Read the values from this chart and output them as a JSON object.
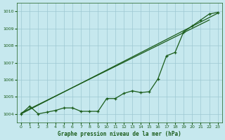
{
  "title": "Graphe pression niveau de la mer (hPa)",
  "bg_color": "#c6e8ee",
  "grid_color": "#9dc8d2",
  "line_color": "#1a5c1a",
  "xlim": [
    -0.5,
    23.5
  ],
  "ylim": [
    1003.5,
    1010.5
  ],
  "yticks": [
    1004,
    1005,
    1006,
    1007,
    1008,
    1009,
    1010
  ],
  "xticks": [
    0,
    1,
    2,
    3,
    4,
    5,
    6,
    7,
    8,
    9,
    10,
    11,
    12,
    13,
    14,
    15,
    16,
    17,
    18,
    19,
    20,
    21,
    22,
    23
  ],
  "line1_x": [
    0,
    23
  ],
  "line1_y": [
    1004.0,
    1009.9
  ],
  "line2_x": [
    0,
    22
  ],
  "line2_y": [
    1004.05,
    1009.5
  ],
  "markers_x": [
    0,
    1,
    2,
    3,
    4,
    5,
    6,
    7,
    8,
    9,
    10,
    11,
    12,
    13,
    14,
    15,
    16,
    17,
    18,
    19,
    20,
    21,
    22,
    23
  ],
  "markers_y": [
    1004.0,
    1004.45,
    1004.0,
    1004.1,
    1004.2,
    1004.35,
    1004.35,
    1004.15,
    1004.15,
    1004.15,
    1004.9,
    1004.9,
    1005.2,
    1005.35,
    1005.25,
    1005.3,
    1006.05,
    1007.4,
    1007.6,
    1008.8,
    1009.15,
    1009.5,
    1009.85,
    1009.95
  ]
}
